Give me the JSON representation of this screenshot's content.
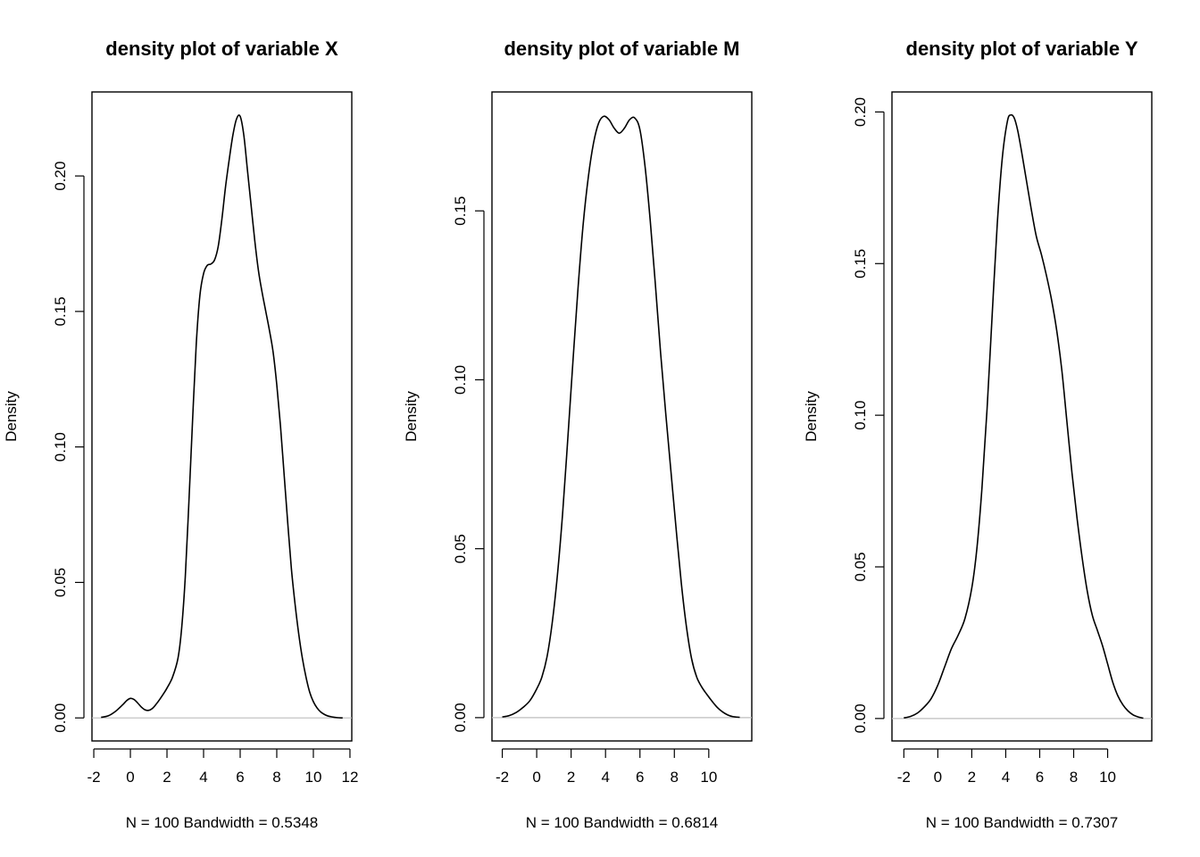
{
  "chart_data": [
    {
      "type": "line",
      "title": "density plot of variable X",
      "xlabel": "N = 100   Bandwidth = 0.5348",
      "ylabel": "Density",
      "xlim": [
        -2.1,
        12.1
      ],
      "ylim": [
        -0.0085,
        0.231
      ],
      "x_ticks": [
        -2,
        0,
        2,
        4,
        6,
        8,
        10,
        12
      ],
      "y_ticks": [
        0.0,
        0.05,
        0.1,
        0.15,
        0.2
      ],
      "y_tick_labels": [
        "0.00",
        "0.05",
        "0.10",
        "0.15",
        "0.20"
      ],
      "zero_line": true,
      "series": [
        {
          "x": [
            -1.6,
            -1.2,
            -0.8,
            -0.4,
            -0.2,
            0.0,
            0.2,
            0.4,
            0.6,
            0.8,
            1.0,
            1.2,
            1.4,
            1.6,
            1.8,
            2.0,
            2.3,
            2.6,
            2.8,
            3.0,
            3.2,
            3.4,
            3.6,
            3.8,
            4.0,
            4.2,
            4.4,
            4.6,
            4.8,
            5.0,
            5.2,
            5.4,
            5.6,
            5.8,
            6.0,
            6.2,
            6.4,
            6.6,
            6.8,
            7.0,
            7.2,
            7.4,
            7.6,
            7.8,
            8.0,
            8.2,
            8.4,
            8.6,
            8.8,
            9.0,
            9.2,
            9.4,
            9.6,
            9.8,
            10.0,
            10.2,
            10.4,
            10.6,
            10.8,
            11.0,
            11.3,
            11.6
          ],
          "y": [
            0.0002,
            0.0008,
            0.0025,
            0.005,
            0.0064,
            0.0072,
            0.0068,
            0.0055,
            0.004,
            0.003,
            0.0028,
            0.0035,
            0.005,
            0.0068,
            0.0088,
            0.011,
            0.015,
            0.022,
            0.033,
            0.052,
            0.08,
            0.11,
            0.138,
            0.156,
            0.164,
            0.167,
            0.1675,
            0.169,
            0.174,
            0.184,
            0.196,
            0.206,
            0.215,
            0.221,
            0.222,
            0.215,
            0.202,
            0.189,
            0.176,
            0.165,
            0.157,
            0.15,
            0.143,
            0.135,
            0.123,
            0.108,
            0.09,
            0.072,
            0.055,
            0.042,
            0.031,
            0.022,
            0.015,
            0.0095,
            0.006,
            0.0037,
            0.0022,
            0.0013,
            0.0007,
            0.0004,
            0.0001,
            0.0
          ]
        }
      ]
    },
    {
      "type": "line",
      "title": "density plot of variable M",
      "xlabel": "N = 100   Bandwidth = 0.6814",
      "ylabel": "Density",
      "xlim": [
        -2.6,
        12.5
      ],
      "ylim": [
        -0.0069,
        0.1852
      ],
      "x_ticks": [
        -2,
        0,
        2,
        4,
        6,
        8,
        10
      ],
      "y_ticks": [
        0.0,
        0.05,
        0.1,
        0.15
      ],
      "y_tick_labels": [
        "0.00",
        "0.05",
        "0.10",
        "0.15"
      ],
      "zero_line": true,
      "series": [
        {
          "x": [
            -2.0,
            -1.6,
            -1.2,
            -0.8,
            -0.4,
            0.0,
            0.3,
            0.6,
            0.9,
            1.2,
            1.5,
            1.8,
            2.1,
            2.4,
            2.7,
            3.0,
            3.3,
            3.6,
            3.9,
            4.2,
            4.5,
            4.8,
            5.1,
            5.4,
            5.7,
            6.0,
            6.3,
            6.6,
            6.9,
            7.2,
            7.5,
            7.8,
            8.1,
            8.4,
            8.7,
            9.0,
            9.3,
            9.6,
            9.9,
            10.2,
            10.5,
            10.8,
            11.1,
            11.4,
            11.8
          ],
          "y": [
            0.0002,
            0.0006,
            0.0015,
            0.003,
            0.005,
            0.0085,
            0.012,
            0.018,
            0.028,
            0.042,
            0.06,
            0.082,
            0.105,
            0.127,
            0.146,
            0.16,
            0.17,
            0.176,
            0.178,
            0.177,
            0.1745,
            0.173,
            0.1745,
            0.177,
            0.1775,
            0.174,
            0.163,
            0.147,
            0.128,
            0.108,
            0.09,
            0.073,
            0.056,
            0.04,
            0.027,
            0.0175,
            0.012,
            0.009,
            0.0068,
            0.0048,
            0.003,
            0.0017,
            0.0008,
            0.0003,
            0.0001
          ]
        }
      ]
    },
    {
      "type": "line",
      "title": "density plot of variable Y",
      "xlabel": "N = 100   Bandwidth = 0.7307",
      "ylabel": "Density",
      "xlim": [
        -2.7,
        12.6
      ],
      "ylim": [
        -0.0074,
        0.2066
      ],
      "x_ticks": [
        -2,
        0,
        2,
        4,
        6,
        8,
        10
      ],
      "y_ticks": [
        0.0,
        0.05,
        0.1,
        0.15,
        0.2
      ],
      "y_tick_labels": [
        "0.00",
        "0.05",
        "0.10",
        "0.15",
        "0.20"
      ],
      "zero_line": true,
      "series": [
        {
          "x": [
            -2.0,
            -1.6,
            -1.2,
            -0.8,
            -0.4,
            0.0,
            0.4,
            0.8,
            1.2,
            1.6,
            2.0,
            2.3,
            2.6,
            2.9,
            3.2,
            3.5,
            3.8,
            4.1,
            4.3,
            4.5,
            4.7,
            4.9,
            5.2,
            5.5,
            5.8,
            6.1,
            6.4,
            6.7,
            7.0,
            7.3,
            7.6,
            7.9,
            8.2,
            8.5,
            8.8,
            9.1,
            9.4,
            9.7,
            10.0,
            10.3,
            10.6,
            10.9,
            11.2,
            11.5,
            11.8,
            12.1
          ],
          "y": [
            0.0002,
            0.0007,
            0.0018,
            0.0038,
            0.0065,
            0.011,
            0.017,
            0.023,
            0.0275,
            0.033,
            0.043,
            0.056,
            0.076,
            0.102,
            0.133,
            0.163,
            0.185,
            0.197,
            0.199,
            0.198,
            0.194,
            0.188,
            0.178,
            0.168,
            0.159,
            0.153,
            0.146,
            0.138,
            0.128,
            0.115,
            0.098,
            0.081,
            0.066,
            0.053,
            0.042,
            0.034,
            0.029,
            0.024,
            0.018,
            0.012,
            0.0075,
            0.0045,
            0.0025,
            0.0012,
            0.0005,
            0.0001
          ]
        }
      ]
    }
  ]
}
